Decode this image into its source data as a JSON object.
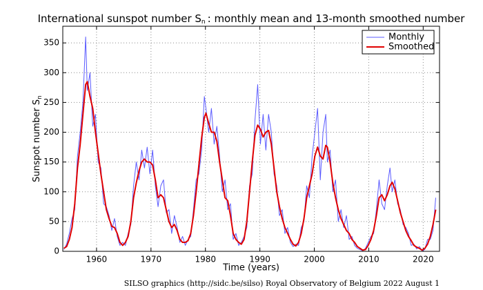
{
  "chart_data": {
    "type": "line",
    "title": "International sunspot number S",
    "title_subscript": "n",
    "title_rest": ": monthly mean and 13-month smoothed number",
    "xlabel": "Time (years)",
    "ylabel": "Sunspot number S",
    "ylabel_subscript": "n",
    "footer": "SILSO graphics (http://sidc.be/silso)  Royal Observatory of Belgium  2022 August 1",
    "x": [
      1954,
      1954.5,
      1955,
      1955.5,
      1956,
      1956.5,
      1957,
      1957.5,
      1958,
      1958.3,
      1958.8,
      1959.3,
      1959.8,
      1960.3,
      1960.8,
      1961.3,
      1961.8,
      1962.3,
      1962.8,
      1963.3,
      1963.8,
      1964.3,
      1964.8,
      1965.3,
      1965.8,
      1966.3,
      1966.8,
      1967.3,
      1967.8,
      1968.3,
      1968.8,
      1969.3,
      1969.8,
      1970.3,
      1970.8,
      1971.3,
      1971.8,
      1972.3,
      1972.8,
      1973.3,
      1973.8,
      1974.3,
      1974.8,
      1975.3,
      1975.8,
      1976.3,
      1976.8,
      1977.3,
      1977.8,
      1978.3,
      1978.8,
      1979.3,
      1979.8,
      1980.1,
      1980.6,
      1981.1,
      1981.6,
      1982.1,
      1982.6,
      1983.1,
      1983.6,
      1984.1,
      1984.6,
      1985.1,
      1985.6,
      1986.1,
      1986.6,
      1987.1,
      1987.6,
      1988.1,
      1988.6,
      1989.1,
      1989.6,
      1990.1,
      1990.6,
      1991.1,
      1991.6,
      1992.1,
      1992.6,
      1993.1,
      1993.6,
      1994.1,
      1994.6,
      1995.1,
      1995.6,
      1996.1,
      1996.6,
      1997.1,
      1997.6,
      1998.1,
      1998.6,
      1999.1,
      1999.6,
      2000.1,
      2000.6,
      2001.1,
      2001.6,
      2002.1,
      2002.4,
      2002.9,
      2003.4,
      2003.9,
      2004.4,
      2004.9,
      2005.4,
      2005.9,
      2006.4,
      2006.9,
      2007.4,
      2007.9,
      2008.4,
      2008.9,
      2009.4,
      2009.9,
      2010.4,
      2010.9,
      2011.4,
      2011.9,
      2012.4,
      2012.9,
      2013.4,
      2013.9,
      2014.3,
      2014.8,
      2015.3,
      2015.8,
      2016.3,
      2016.8,
      2017.3,
      2017.8,
      2018.3,
      2018.8,
      2019.3,
      2019.8,
      2020.3,
      2020.8,
      2021.3,
      2021.8,
      2022.3
    ],
    "series": [
      {
        "name": "Monthly",
        "color": "#5a5aff",
        "width": 1,
        "values": [
          3,
          12,
          30,
          55,
          70,
          160,
          200,
          250,
          360,
          270,
          300,
          210,
          230,
          150,
          140,
          80,
          75,
          60,
          35,
          55,
          25,
          10,
          15,
          10,
          30,
          45,
          110,
          150,
          120,
          170,
          140,
          175,
          130,
          170,
          110,
          75,
          110,
          120,
          65,
          70,
          30,
          60,
          40,
          15,
          25,
          10,
          20,
          25,
          70,
          120,
          130,
          170,
          260,
          240,
          200,
          240,
          180,
          210,
          160,
          100,
          120,
          70,
          80,
          20,
          30,
          10,
          15,
          25,
          40,
          110,
          130,
          220,
          280,
          180,
          230,
          170,
          230,
          200,
          130,
          110,
          60,
          70,
          30,
          40,
          15,
          8,
          12,
          10,
          40,
          50,
          110,
          90,
          160,
          200,
          240,
          120,
          200,
          230,
          150,
          170,
          100,
          120,
          50,
          70,
          40,
          60,
          20,
          25,
          10,
          5,
          3,
          1,
          5,
          15,
          25,
          30,
          70,
          120,
          80,
          70,
          110,
          140,
          100,
          120,
          80,
          70,
          45,
          40,
          30,
          10,
          12,
          4,
          8,
          1,
          3,
          20,
          20,
          35,
          90
        ]
      },
      {
        "name": "Smoothed",
        "color": "#e00000",
        "width": 2,
        "values": [
          5,
          8,
          20,
          40,
          80,
          140,
          180,
          230,
          280,
          285,
          260,
          240,
          200,
          165,
          130,
          100,
          70,
          55,
          42,
          40,
          30,
          15,
          10,
          15,
          25,
          50,
          90,
          115,
          135,
          150,
          155,
          150,
          150,
          145,
          120,
          90,
          95,
          90,
          70,
          50,
          40,
          45,
          35,
          20,
          15,
          15,
          18,
          30,
          60,
          100,
          145,
          190,
          225,
          232,
          215,
          200,
          200,
          185,
          150,
          120,
          90,
          85,
          60,
          30,
          20,
          15,
          12,
          20,
          50,
          100,
          150,
          195,
          212,
          205,
          192,
          200,
          203,
          180,
          140,
          100,
          75,
          55,
          40,
          30,
          20,
          12,
          9,
          15,
          30,
          55,
          90,
          110,
          130,
          160,
          175,
          160,
          155,
          178,
          175,
          150,
          115,
          90,
          70,
          55,
          45,
          35,
          30,
          20,
          15,
          8,
          5,
          2,
          3,
          10,
          20,
          35,
          60,
          90,
          95,
          85,
          95,
          110,
          116,
          105,
          85,
          65,
          50,
          35,
          25,
          18,
          10,
          7,
          5,
          2,
          5,
          12,
          25,
          45,
          70
        ]
      }
    ],
    "xlim": [
      1953.8,
      2023
    ],
    "ylim": [
      0,
      378
    ],
    "xticks": [
      1960,
      1970,
      1980,
      1990,
      2000,
      2010,
      2020
    ],
    "yticks": [
      0,
      50,
      100,
      150,
      200,
      250,
      300,
      350
    ],
    "grid": true,
    "legend": "upper right"
  }
}
